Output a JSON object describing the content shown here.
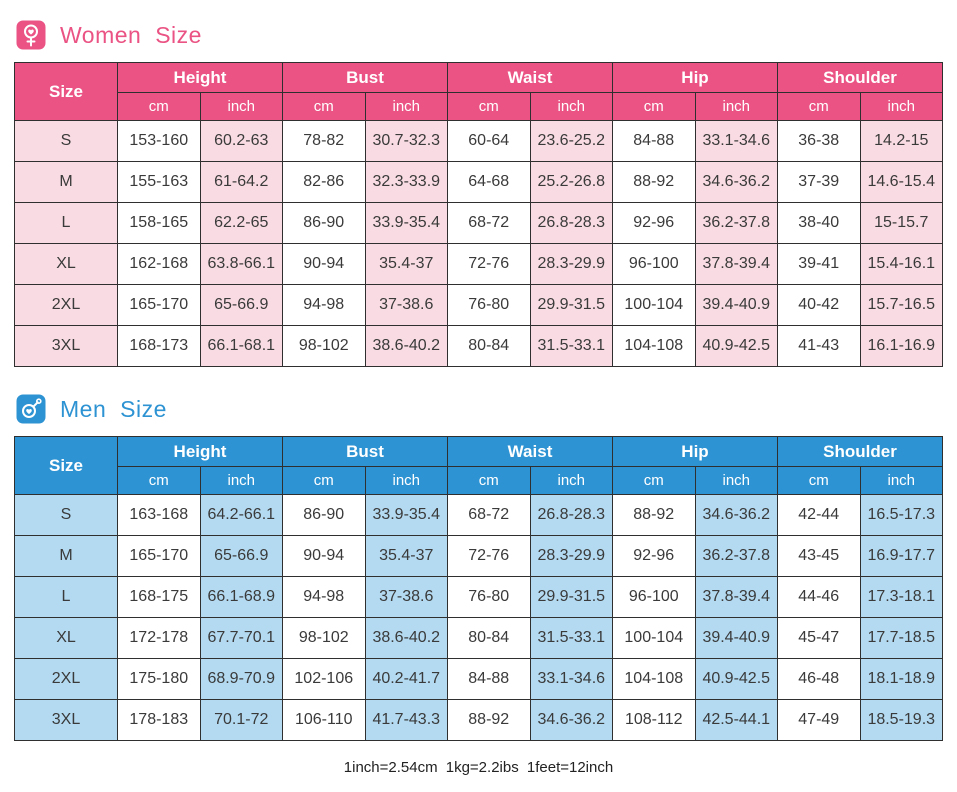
{
  "colors": {
    "women_accent": "#ea5384",
    "women_tint": "#f9dce3",
    "men_accent": "#2e93d2",
    "men_tint": "#b3daf1",
    "grid_border": "#2f2f2f",
    "cell_text": "#3a3a3a"
  },
  "footer_note": "1inch=2.54cm  1kg=2.2ibs  1feet=12inch",
  "chart_data": [
    {
      "type": "table",
      "title": "Women Size",
      "icon": "female-icon",
      "accent_color": "#ea5384",
      "tint_color": "#f9dce3",
      "header": {
        "size_label": "Size",
        "groups": [
          "Height",
          "Bust",
          "Waist",
          "Hip",
          "Shoulder"
        ],
        "units": [
          "cm",
          "inch"
        ]
      },
      "rows": [
        {
          "size": "S",
          "values": [
            "153-160",
            "60.2-63",
            "78-82",
            "30.7-32.3",
            "60-64",
            "23.6-25.2",
            "84-88",
            "33.1-34.6",
            "36-38",
            "14.2-15"
          ]
        },
        {
          "size": "M",
          "values": [
            "155-163",
            "61-64.2",
            "82-86",
            "32.3-33.9",
            "64-68",
            "25.2-26.8",
            "88-92",
            "34.6-36.2",
            "37-39",
            "14.6-15.4"
          ]
        },
        {
          "size": "L",
          "values": [
            "158-165",
            "62.2-65",
            "86-90",
            "33.9-35.4",
            "68-72",
            "26.8-28.3",
            "92-96",
            "36.2-37.8",
            "38-40",
            "15-15.7"
          ]
        },
        {
          "size": "XL",
          "values": [
            "162-168",
            "63.8-66.1",
            "90-94",
            "35.4-37",
            "72-76",
            "28.3-29.9",
            "96-100",
            "37.8-39.4",
            "39-41",
            "15.4-16.1"
          ]
        },
        {
          "size": "2XL",
          "values": [
            "165-170",
            "65-66.9",
            "94-98",
            "37-38.6",
            "76-80",
            "29.9-31.5",
            "100-104",
            "39.4-40.9",
            "40-42",
            "15.7-16.5"
          ]
        },
        {
          "size": "3XL",
          "values": [
            "168-173",
            "66.1-68.1",
            "98-102",
            "38.6-40.2",
            "80-84",
            "31.5-33.1",
            "104-108",
            "40.9-42.5",
            "41-43",
            "16.1-16.9"
          ]
        }
      ]
    },
    {
      "type": "table",
      "title": "Men Size",
      "icon": "male-icon",
      "accent_color": "#2e93d2",
      "tint_color": "#b3daf1",
      "header": {
        "size_label": "Size",
        "groups": [
          "Height",
          "Bust",
          "Waist",
          "Hip",
          "Shoulder"
        ],
        "units": [
          "cm",
          "inch"
        ]
      },
      "rows": [
        {
          "size": "S",
          "values": [
            "163-168",
            "64.2-66.1",
            "86-90",
            "33.9-35.4",
            "68-72",
            "26.8-28.3",
            "88-92",
            "34.6-36.2",
            "42-44",
            "16.5-17.3"
          ]
        },
        {
          "size": "M",
          "values": [
            "165-170",
            "65-66.9",
            "90-94",
            "35.4-37",
            "72-76",
            "28.3-29.9",
            "92-96",
            "36.2-37.8",
            "43-45",
            "16.9-17.7"
          ]
        },
        {
          "size": "L",
          "values": [
            "168-175",
            "66.1-68.9",
            "94-98",
            "37-38.6",
            "76-80",
            "29.9-31.5",
            "96-100",
            "37.8-39.4",
            "44-46",
            "17.3-18.1"
          ]
        },
        {
          "size": "XL",
          "values": [
            "172-178",
            "67.7-70.1",
            "98-102",
            "38.6-40.2",
            "80-84",
            "31.5-33.1",
            "100-104",
            "39.4-40.9",
            "45-47",
            "17.7-18.5"
          ]
        },
        {
          "size": "2XL",
          "values": [
            "175-180",
            "68.9-70.9",
            "102-106",
            "40.2-41.7",
            "84-88",
            "33.1-34.6",
            "104-108",
            "40.9-42.5",
            "46-48",
            "18.1-18.9"
          ]
        },
        {
          "size": "3XL",
          "values": [
            "178-183",
            "70.1-72",
            "106-110",
            "41.7-43.3",
            "88-92",
            "34.6-36.2",
            "108-112",
            "42.5-44.1",
            "47-49",
            "18.5-19.3"
          ]
        }
      ]
    }
  ]
}
